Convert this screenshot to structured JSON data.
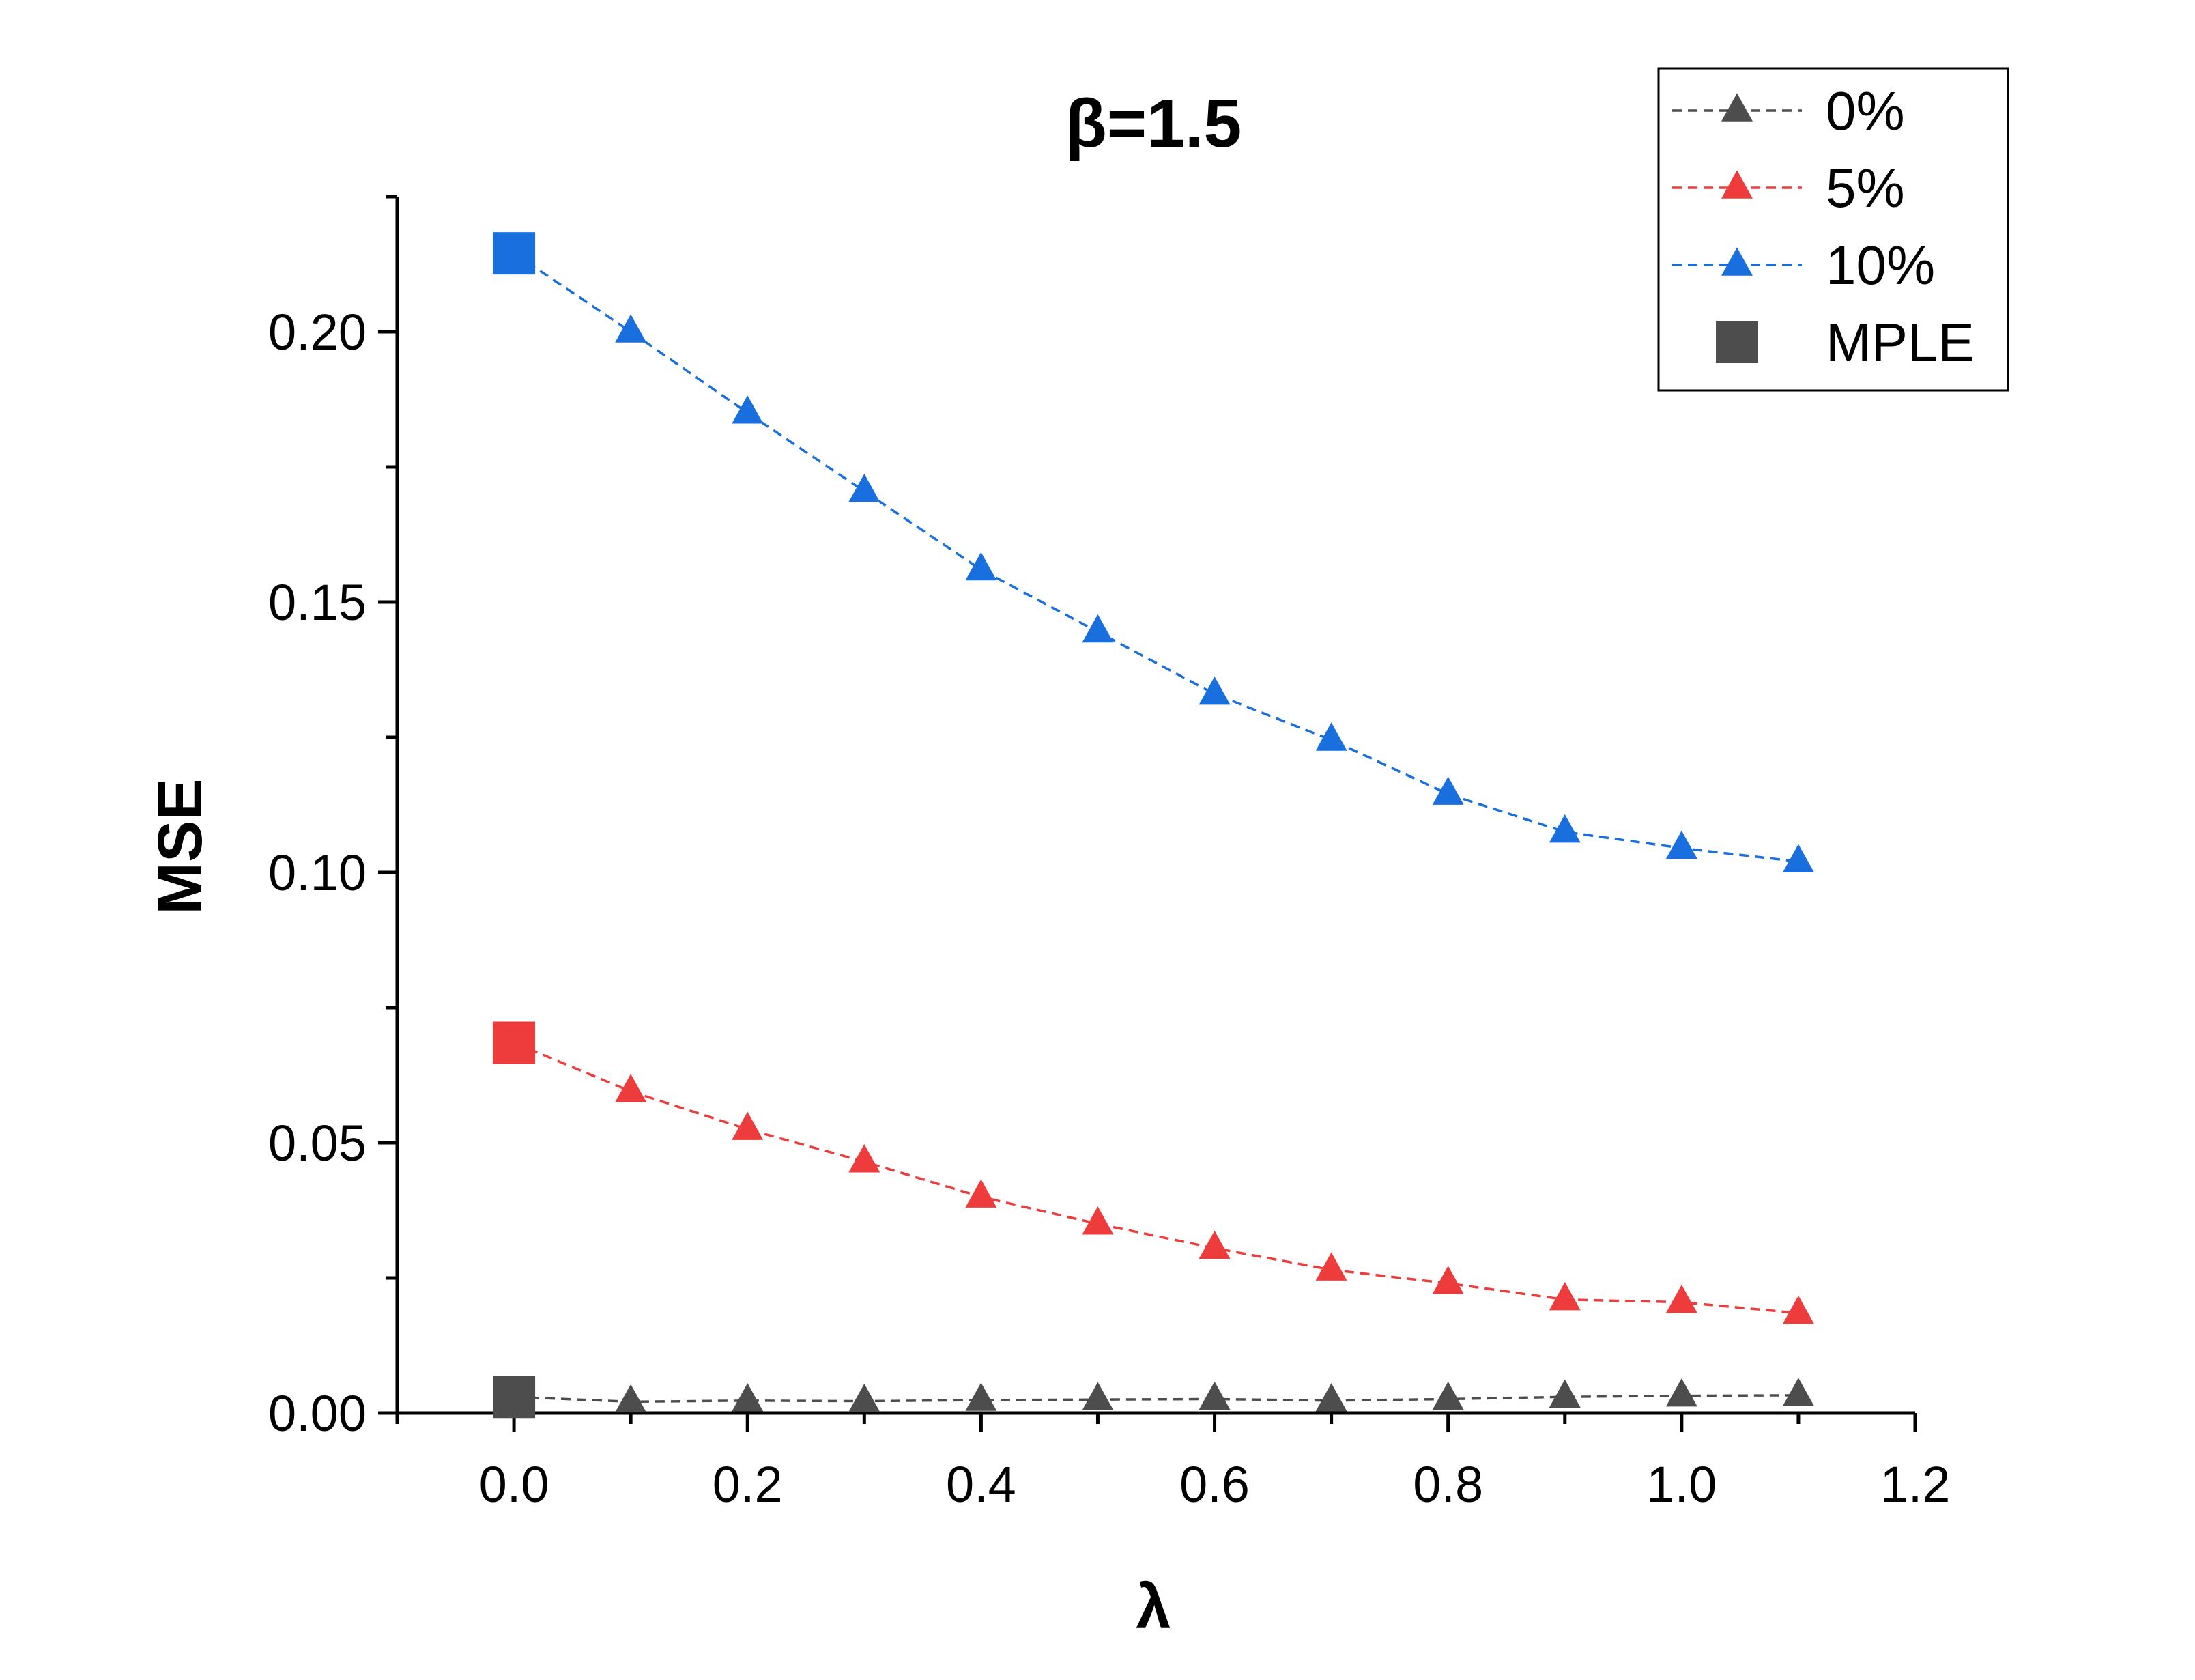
{
  "chart_data": {
    "type": "line",
    "title": "β=1.5",
    "xlabel": "λ",
    "ylabel": "MSE",
    "xlim": [
      -0.1,
      1.2
    ],
    "ylim": [
      0.0,
      0.225
    ],
    "xticks": [
      0.0,
      0.2,
      0.4,
      0.6,
      0.8,
      1.0,
      1.2
    ],
    "xtick_labels": [
      "0.0",
      "0.2",
      "0.4",
      "0.6",
      "0.8",
      "1.0",
      "1.2"
    ],
    "yticks": [
      0.0,
      0.05,
      0.1,
      0.15,
      0.2
    ],
    "ytick_labels": [
      "0.00",
      "0.05",
      "0.10",
      "0.15",
      "0.20"
    ],
    "grid": false,
    "legend_position": "top-right",
    "x": [
      0.1,
      0.2,
      0.3,
      0.4,
      0.5,
      0.6,
      0.7,
      0.8,
      0.9,
      1.0,
      1.1
    ],
    "series": [
      {
        "name": "0%",
        "color": "#4d4d4d",
        "marker": "triangle",
        "line": "dashed",
        "values": [
          0.0021,
          0.0023,
          0.0022,
          0.0024,
          0.0025,
          0.0026,
          0.0023,
          0.0026,
          0.003,
          0.0032,
          0.0033
        ]
      },
      {
        "name": "5%",
        "color": "#ee3b3b",
        "marker": "triangle",
        "line": "dashed",
        "values": [
          0.0595,
          0.0525,
          0.0465,
          0.04,
          0.035,
          0.0305,
          0.0265,
          0.024,
          0.021,
          0.0205,
          0.0185
        ]
      },
      {
        "name": "10%",
        "color": "#1a6fdf",
        "marker": "triangle",
        "line": "dashed",
        "values": [
          0.2,
          0.185,
          0.1705,
          0.156,
          0.1445,
          0.133,
          0.1245,
          0.1145,
          0.1075,
          0.1045,
          0.102
        ]
      }
    ],
    "mple": {
      "name": "MPLE",
      "color": "#4d4d4d",
      "marker": "square",
      "x": 0.0,
      "points": [
        {
          "value": 0.003,
          "color": "#4d4d4d"
        },
        {
          "value": 0.0685,
          "color": "#ee3b3b"
        },
        {
          "value": 0.2145,
          "color": "#1a6fdf"
        }
      ]
    }
  }
}
